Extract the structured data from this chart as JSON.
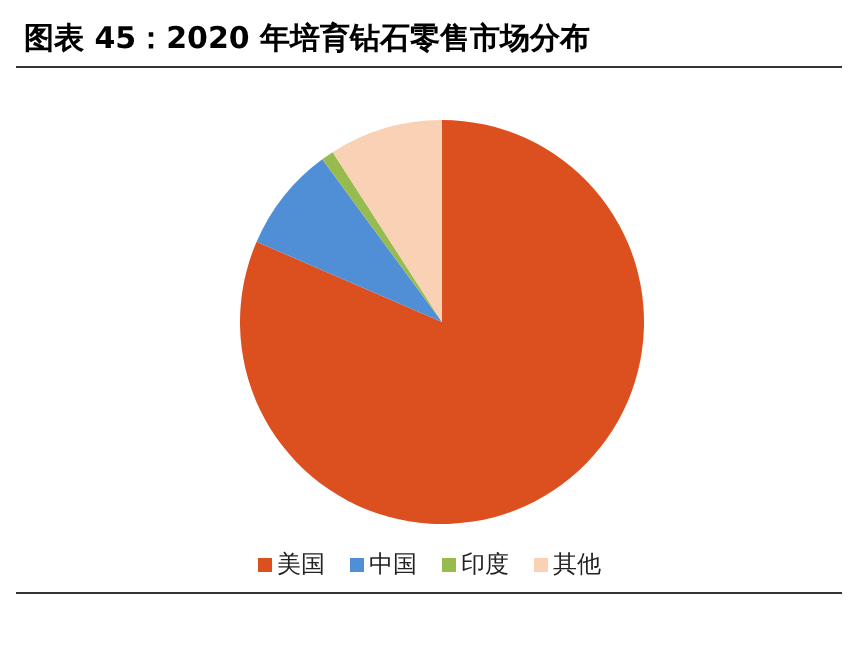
{
  "chart_data": {
    "type": "pie",
    "title": "图表 45：2020 年培育钻石零售市场分布",
    "categories": [
      "美国",
      "中国",
      "印度",
      "其他"
    ],
    "values": [
      81.5,
      8.4,
      1.0,
      9.1
    ],
    "colors": [
      "#dc4f1e",
      "#508fd6",
      "#98bb4f",
      "#f9d1b5"
    ],
    "legend": "bottom"
  }
}
